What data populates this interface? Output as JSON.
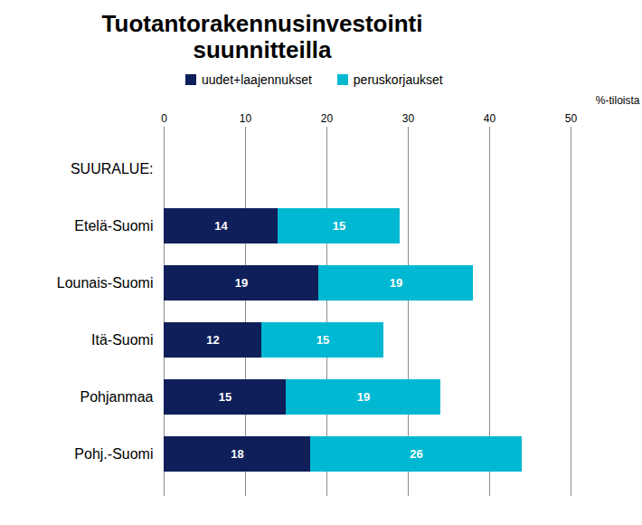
{
  "chart_data": {
    "type": "bar",
    "orientation": "horizontal",
    "stacked": true,
    "data_labels": true,
    "grid": true,
    "title": "Tuotantorakennusinvestointi suunnitteilla",
    "x_label": "%-tiloista",
    "categories": [
      "SUURALUE:",
      "Etelä-Suomi",
      "Lounais-Suomi",
      "Itä-Suomi",
      "Pohjanmaa",
      "Pohj.-Suomi"
    ],
    "series": [
      {
        "name": "uudet+laajennukset",
        "color": "#0f1f5a",
        "values": [
          null,
          14,
          19,
          12,
          15,
          18
        ]
      },
      {
        "name": "peruskorjaukset",
        "color": "#00b8d1",
        "values": [
          null,
          15,
          19,
          15,
          19,
          26
        ]
      }
    ],
    "xlim": [
      0,
      50
    ],
    "xticks": [
      0,
      10,
      20,
      30,
      40,
      50
    ]
  }
}
